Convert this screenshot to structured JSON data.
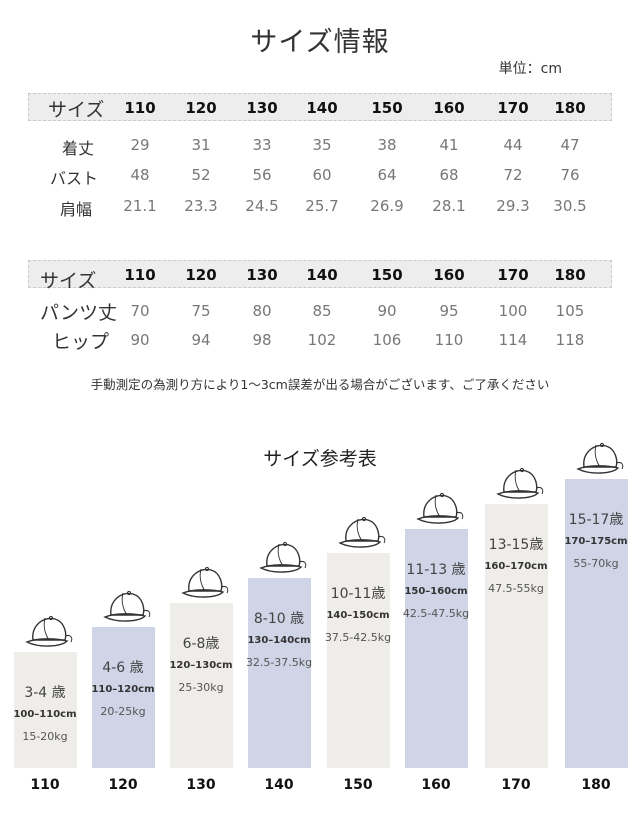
{
  "title": "サイズ情報",
  "unit": "単位：cm",
  "sizes": [
    "110",
    "120",
    "130",
    "140",
    "150",
    "160",
    "170",
    "180"
  ],
  "table1": {
    "header_label": "サイズ",
    "rows": [
      {
        "label": "着丈",
        "values": [
          "29",
          "31",
          "33",
          "35",
          "38",
          "41",
          "44",
          "47"
        ]
      },
      {
        "label": "バスト",
        "values": [
          "48",
          "52",
          "56",
          "60",
          "64",
          "68",
          "72",
          "76"
        ]
      },
      {
        "label": "肩幅",
        "values": [
          "21.1",
          "23.3",
          "24.5",
          "25.7",
          "26.9",
          "28.1",
          "29.3",
          "30.5"
        ]
      }
    ]
  },
  "table2": {
    "header_label": "サイズ",
    "rows": [
      {
        "label": "パンツ丈",
        "values": [
          "70",
          "75",
          "80",
          "85",
          "90",
          "95",
          "100",
          "105"
        ]
      },
      {
        "label": "ヒップ",
        "values": [
          "90",
          "94",
          "98",
          "102",
          "106",
          "110",
          "114",
          "118"
        ]
      }
    ]
  },
  "note": "手動測定の為測り方により1～3cm誤差が出る場合がございます、ご了承ください",
  "chart_title": "サイズ参考表",
  "chart_data": {
    "type": "bar",
    "title": "サイズ参考表",
    "categories": [
      "110",
      "120",
      "130",
      "140",
      "150",
      "160",
      "170",
      "180"
    ],
    "series": [
      {
        "values": [
          1,
          2,
          3,
          4,
          5,
          6,
          7,
          8
        ]
      }
    ],
    "bars": [
      {
        "age": "3-4 歳",
        "height": "100–110cm",
        "weight": "15-20kg",
        "color": "light"
      },
      {
        "age": "4-6 歳",
        "height": "110–120cm",
        "weight": "20-25kg",
        "color": "blue"
      },
      {
        "age": "6-8歳",
        "height": "120–130cm",
        "weight": "25-30kg",
        "color": "light"
      },
      {
        "age": "8-10 歳",
        "height": "130–140cm",
        "weight": "32.5-37.5kg",
        "color": "blue"
      },
      {
        "age": "10-11歳",
        "height": "140–150cm",
        "weight": "37.5-42.5kg",
        "color": "light"
      },
      {
        "age": "11-13 歳",
        "height": "150–160cm",
        "weight": "42.5-47.5kg",
        "color": "blue"
      },
      {
        "age": "13-15歳",
        "height": "160–170cm",
        "weight": "47.5-55kg",
        "color": "light"
      },
      {
        "age": "15-17歳",
        "height": "170–175cm",
        "weight": "55-70kg",
        "color": "blue"
      }
    ],
    "icon": "cap-icon"
  }
}
